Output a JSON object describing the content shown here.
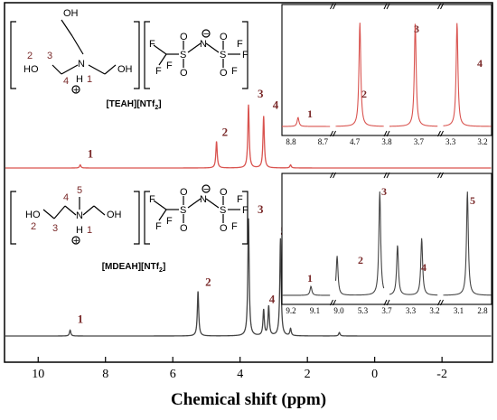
{
  "chart_data": {
    "type": "line",
    "title": "",
    "xlabel": "Chemical shift (ppm)",
    "ylabel": "",
    "xlim": [
      11,
      -3.5
    ],
    "x_reversed": true,
    "xticks": [
      10,
      8,
      6,
      4,
      2,
      0,
      -2
    ],
    "tick_labels": [
      "10",
      "8",
      "6",
      "4",
      "2",
      "0",
      "-2"
    ],
    "series": [
      {
        "name": "[TEAH][NTf2]",
        "color": "#d9534f",
        "peaks": [
          {
            "shift": 8.75,
            "height": 0.05,
            "label": "1"
          },
          {
            "shift": 4.7,
            "height": 0.42,
            "label": "2"
          },
          {
            "shift": 3.75,
            "height": 1.0,
            "label": "3"
          },
          {
            "shift": 3.3,
            "height": 0.82,
            "label": "4"
          },
          {
            "shift": 2.5,
            "height": 0.05,
            "label": ""
          }
        ],
        "inset": {
          "segments": [
            [
              8.8,
              8.65
            ],
            [
              4.76,
              4.64
            ],
            [
              3.83,
              3.68
            ],
            [
              3.34,
              3.2
            ]
          ],
          "tick_labels": [
            "8.8",
            "8.7",
            "4.7",
            "3.8",
            "3.7",
            "3.3",
            "3.2"
          ],
          "labels": [
            "1",
            "2",
            "3",
            "4"
          ]
        }
      },
      {
        "name": "[MDEAH][NTf2]",
        "color": "#444444",
        "peaks": [
          {
            "shift": 9.05,
            "height": 0.05,
            "label": "1"
          },
          {
            "shift": 5.25,
            "height": 0.38,
            "label": "2"
          },
          {
            "shift": 3.75,
            "height": 1.0,
            "label": "3"
          },
          {
            "shift": 3.3,
            "height": 0.22,
            "label": "4"
          },
          {
            "shift": 3.15,
            "height": 0.25,
            "label": ""
          },
          {
            "shift": 2.8,
            "height": 0.83,
            "label": "5"
          },
          {
            "shift": 2.5,
            "height": 0.06,
            "label": ""
          },
          {
            "shift": 1.05,
            "height": 0.03,
            "label": ""
          }
        ],
        "inset": {
          "segments": [
            [
              9.2,
              8.95
            ],
            [
              5.3,
              3.6
            ],
            [
              3.35,
              3.05
            ],
            [
              2.85,
              2.75
            ]
          ],
          "tick_labels": [
            "9.2",
            "9.1",
            "9.0",
            "5.3",
            "3.7",
            "3.3",
            "3.2",
            "3.1",
            "2.8"
          ],
          "labels": [
            "1",
            "2",
            "3",
            "4",
            "5"
          ]
        }
      }
    ]
  },
  "structures": {
    "teah": {
      "name": "[TEAH][NTf",
      "name_sub": "2",
      "name_end": "]",
      "atoms": [
        "OH",
        "HO",
        "OH",
        "N",
        "H"
      ],
      "numbers": [
        "2",
        "3",
        "4",
        "1"
      ],
      "charge": "+",
      "anion_atoms": [
        "F",
        "F",
        "F",
        "S",
        "O",
        "O",
        "N",
        "S",
        "O",
        "O",
        "F",
        "F",
        "F"
      ],
      "anion_charge": "−"
    },
    "mdeah": {
      "name": "[MDEAH][NTf",
      "name_sub": "2",
      "name_end": "]",
      "atoms": [
        "HO",
        "N",
        "H",
        "OH"
      ],
      "numbers": [
        "2",
        "3",
        "4",
        "5",
        "1"
      ],
      "charge": "+",
      "anion_atoms": [
        "F",
        "F",
        "F",
        "S",
        "O",
        "O",
        "N",
        "S",
        "O",
        "O",
        "F",
        "F",
        "F"
      ],
      "anion_charge": "−"
    }
  }
}
